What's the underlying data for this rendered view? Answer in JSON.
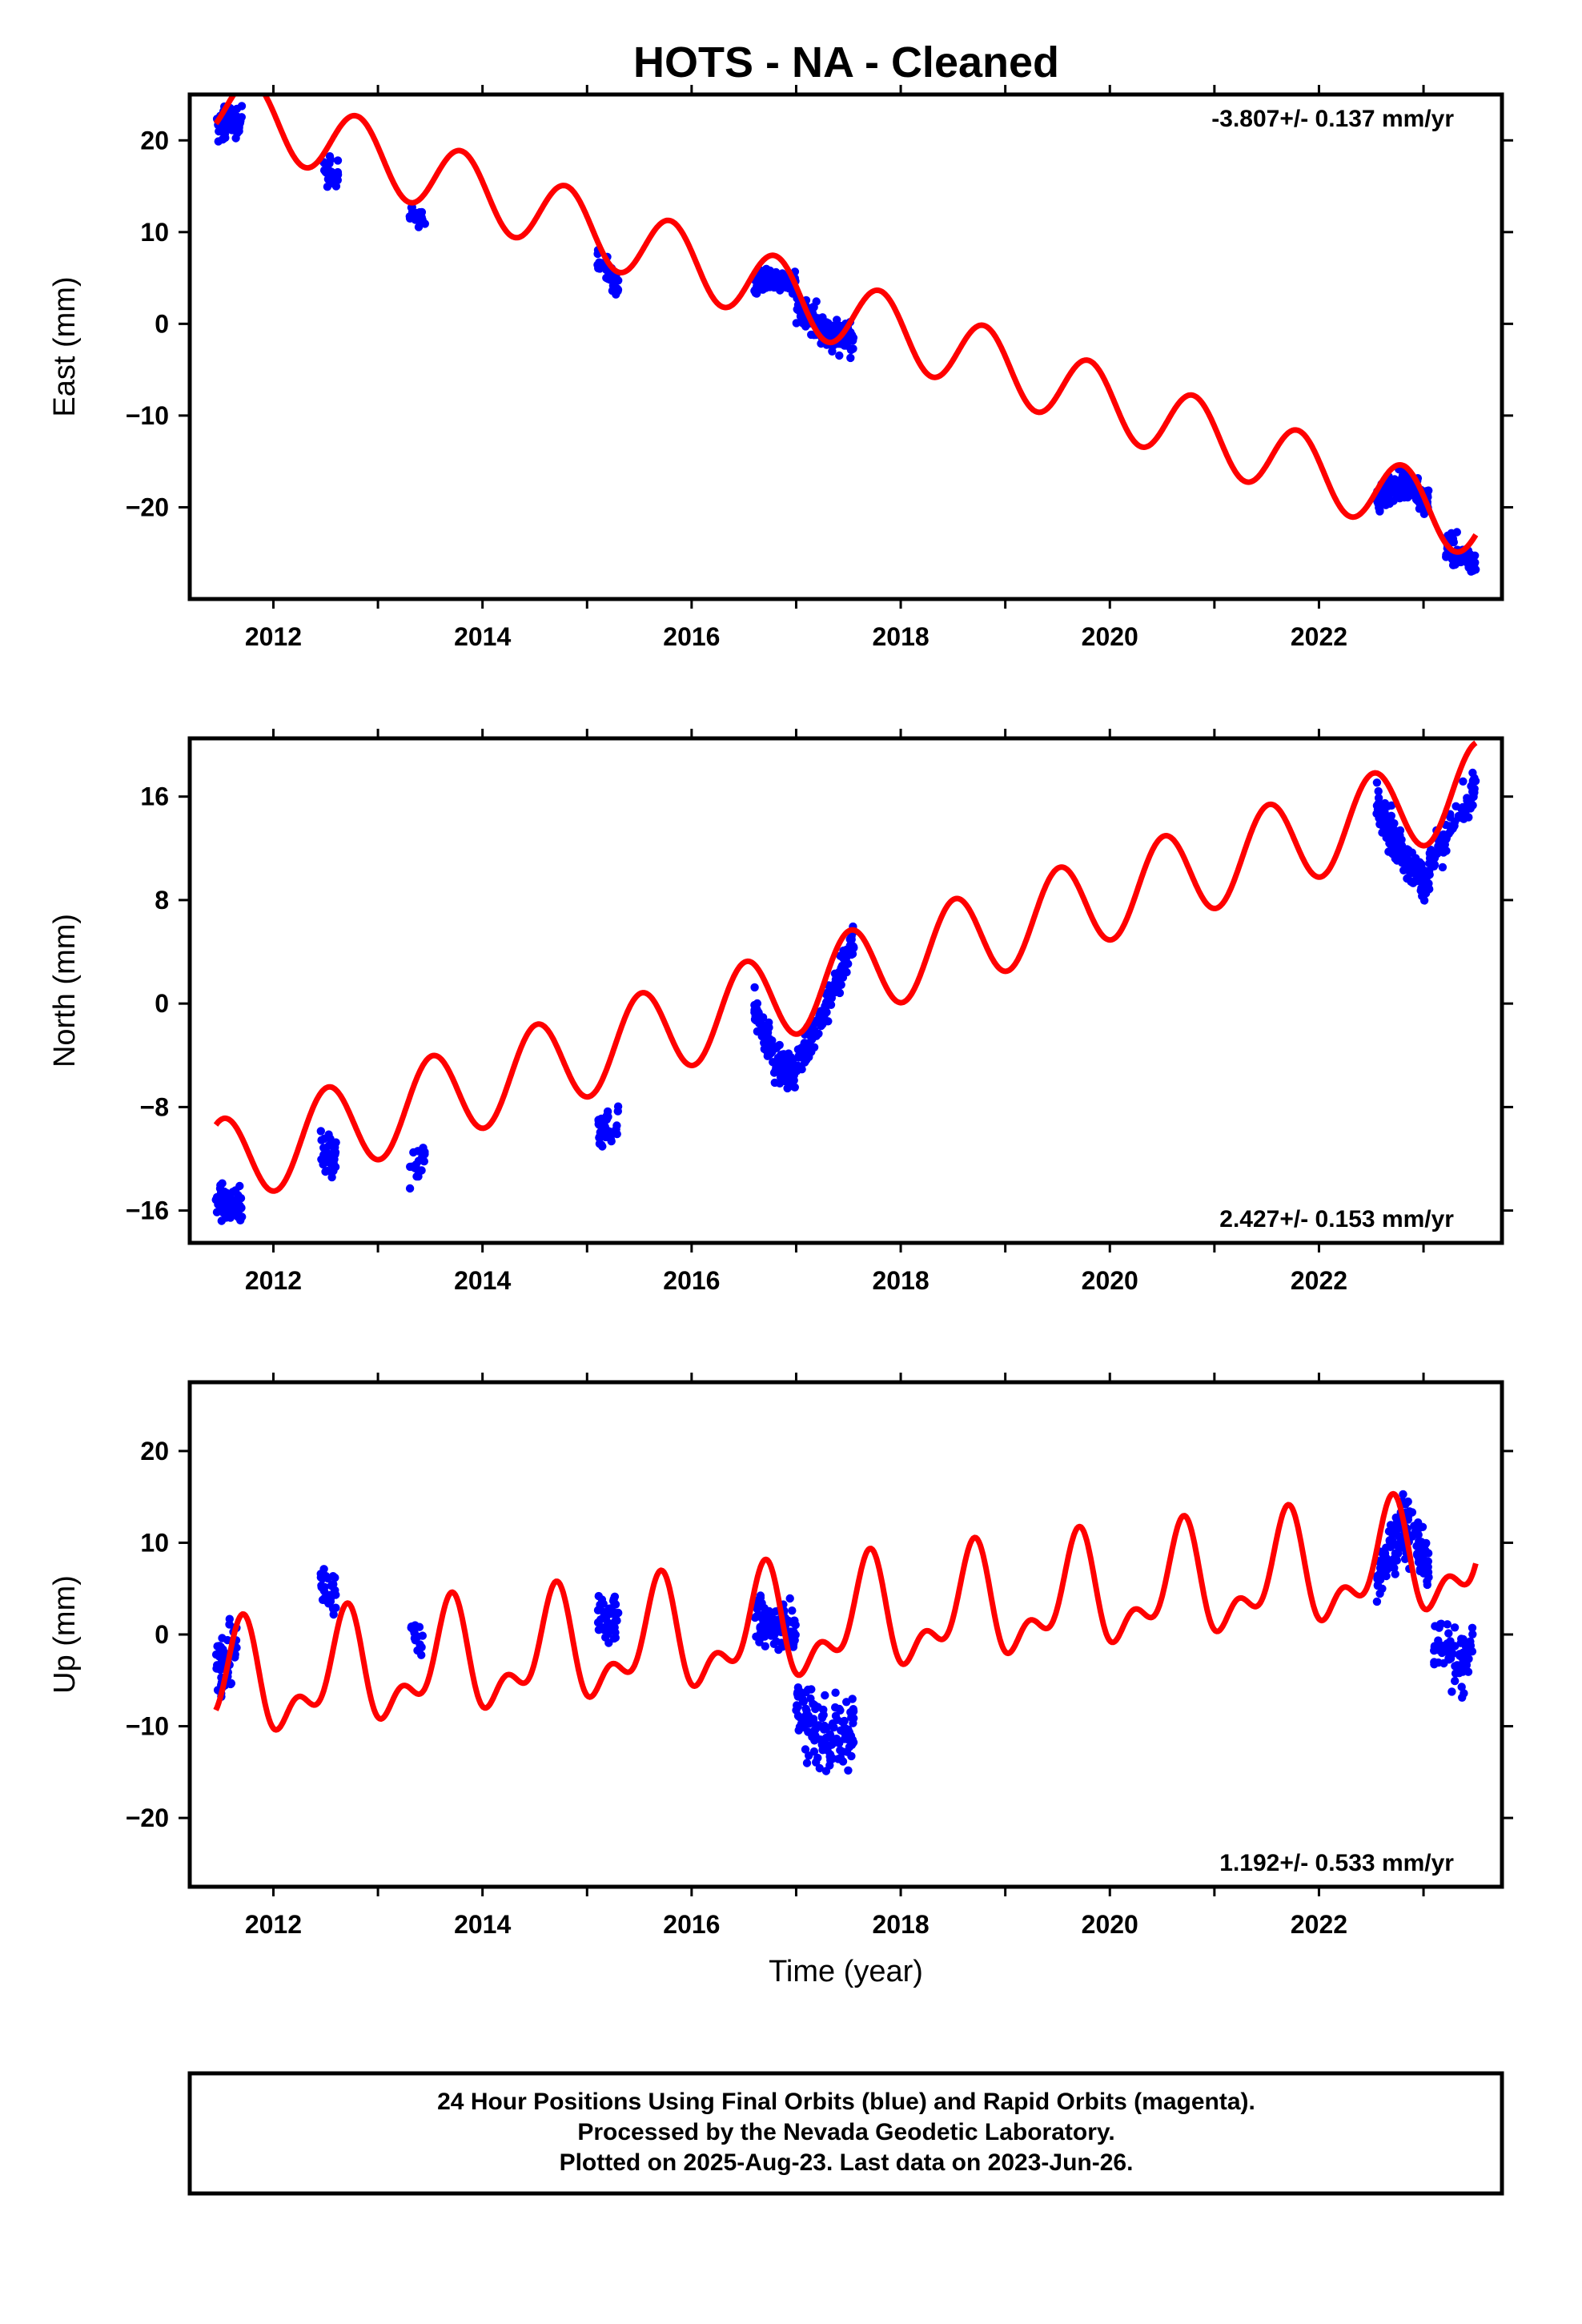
{
  "title": "HOTS  - NA - Cleaned",
  "colors": {
    "data": "#0000ff",
    "model": "#ff0000",
    "frame": "#000000"
  },
  "footer": {
    "line1": "24 Hour Positions Using Final Orbits (blue) and Rapid Orbits (magenta).",
    "line2": "Processed by the Nevada Geodetic Laboratory.",
    "line3": "Plotted on 2025-Aug-23. Last data on 2023-Jun-26."
  },
  "chart_data": [
    {
      "type": "scatter",
      "ylabel": "East (mm)",
      "xlabel": "",
      "xlim": [
        2011.2,
        2023.75
      ],
      "ylim": [
        -30,
        25
      ],
      "xticks": [
        2012,
        2014,
        2016,
        2018,
        2020,
        2022
      ],
      "yticks": [
        20,
        10,
        0,
        -10,
        -20
      ],
      "ytick_labels": [
        "20",
        "10",
        "0",
        "−10",
        "−20"
      ],
      "rate_label": "-3.807+/- 0.137 mm/yr",
      "rate_position": "top-right",
      "series": [
        {
          "kind": "points",
          "clusters": [
            {
              "x0": 2011.45,
              "x1": 2011.7,
              "values": [
                [
                  2011.45,
                  21.0
                ],
                [
                  2011.55,
                  21.8
                ],
                [
                  2011.7,
                  22.5
                ]
              ],
              "spread": 1.6,
              "n": 60
            },
            {
              "x0": 2012.48,
              "x1": 2012.62,
              "values": [
                [
                  2012.48,
                  17.0
                ],
                [
                  2012.62,
                  16.0
                ]
              ],
              "spread": 1.4,
              "n": 35
            },
            {
              "x0": 2013.3,
              "x1": 2013.45,
              "values": [
                [
                  2013.3,
                  12.0
                ],
                [
                  2013.45,
                  11.5
                ]
              ],
              "spread": 1.0,
              "n": 20
            },
            {
              "x0": 2015.1,
              "x1": 2015.3,
              "values": [
                [
                  2015.1,
                  7.0
                ],
                [
                  2015.3,
                  4.0
                ]
              ],
              "spread": 1.3,
              "n": 40
            },
            {
              "x0": 2016.6,
              "x1": 2017.0,
              "values": [
                [
                  2016.6,
                  4.5
                ],
                [
                  2016.8,
                  5.0
                ],
                [
                  2017.0,
                  4.5
                ]
              ],
              "spread": 1.0,
              "n": 110
            },
            {
              "x0": 2017.0,
              "x1": 2017.55,
              "values": [
                [
                  2017.0,
                  2.0
                ],
                [
                  2017.3,
                  -1.0
                ],
                [
                  2017.55,
                  -1.5
                ]
              ],
              "spread": 1.6,
              "n": 140
            },
            {
              "x0": 2022.55,
              "x1": 2023.05,
              "values": [
                [
                  2022.55,
                  -19.5
                ],
                [
                  2022.8,
                  -17.5
                ],
                [
                  2023.05,
                  -19.5
                ]
              ],
              "spread": 1.4,
              "n": 160
            },
            {
              "x0": 2023.2,
              "x1": 2023.5,
              "values": [
                [
                  2023.2,
                  -24.0
                ],
                [
                  2023.5,
                  -26.0
                ]
              ],
              "spread": 1.5,
              "n": 60
            }
          ]
        },
        {
          "kind": "model",
          "intercept_at_2011": 25.75,
          "rate": -3.807,
          "amplitude": 3.75,
          "peak_phase": 0.8
        }
      ]
    },
    {
      "type": "scatter",
      "ylabel": "North (mm)",
      "xlabel": "",
      "xlim": [
        2011.2,
        2023.75
      ],
      "ylim": [
        -18.5,
        20.5
      ],
      "xticks": [
        2012,
        2014,
        2016,
        2018,
        2020,
        2022
      ],
      "yticks": [
        16,
        8,
        0,
        -8,
        -16
      ],
      "ytick_labels": [
        "16",
        "8",
        "0",
        "−8",
        "−16"
      ],
      "rate_label": "2.427+/- 0.153 mm/yr",
      "rate_position": "bottom-right",
      "series": [
        {
          "kind": "points",
          "clusters": [
            {
              "x0": 2011.45,
              "x1": 2011.7,
              "values": [
                [
                  2011.45,
                  -15.5
                ],
                [
                  2011.7,
                  -15.5
                ]
              ],
              "spread": 1.3,
              "n": 60
            },
            {
              "x0": 2012.45,
              "x1": 2012.6,
              "values": [
                [
                  2012.45,
                  -11.5
                ],
                [
                  2012.6,
                  -12.0
                ]
              ],
              "spread": 1.2,
              "n": 35
            },
            {
              "x0": 2013.3,
              "x1": 2013.45,
              "values": [
                [
                  2013.3,
                  -13.5
                ],
                [
                  2013.45,
                  -11.5
                ]
              ],
              "spread": 1.2,
              "n": 20
            },
            {
              "x0": 2015.1,
              "x1": 2015.3,
              "values": [
                [
                  2015.1,
                  -10.0
                ],
                [
                  2015.3,
                  -9.0
                ]
              ],
              "spread": 1.2,
              "n": 40
            },
            {
              "x0": 2016.6,
              "x1": 2017.0,
              "values": [
                [
                  2016.6,
                  0.0
                ],
                [
                  2016.8,
                  -4.5
                ],
                [
                  2017.0,
                  -5.5
                ]
              ],
              "spread": 1.3,
              "n": 110
            },
            {
              "x0": 2017.0,
              "x1": 2017.55,
              "values": [
                [
                  2017.0,
                  -5.0
                ],
                [
                  2017.3,
                  0.0
                ],
                [
                  2017.55,
                  5.0
                ]
              ],
              "spread": 1.3,
              "n": 140
            },
            {
              "x0": 2022.55,
              "x1": 2023.05,
              "values": [
                [
                  2022.55,
                  15.5
                ],
                [
                  2022.8,
                  11.5
                ],
                [
                  2023.05,
                  9.0
                ]
              ],
              "spread": 1.3,
              "n": 160
            },
            {
              "x0": 2023.05,
              "x1": 2023.5,
              "values": [
                [
                  2023.05,
                  10.5
                ],
                [
                  2023.3,
                  14.0
                ],
                [
                  2023.5,
                  17.0
                ]
              ],
              "spread": 1.3,
              "n": 80
            }
          ]
        },
        {
          "kind": "model",
          "intercept_at_2011": -13.55,
          "rate": 2.427,
          "amplitude": 3.4,
          "peak_phase": 0.52
        }
      ]
    },
    {
      "type": "scatter",
      "ylabel": "Up (mm)",
      "xlabel": "Time (year)",
      "xlim": [
        2011.2,
        2023.75
      ],
      "ylim": [
        -27.5,
        27.5
      ],
      "xticks": [
        2012,
        2014,
        2016,
        2018,
        2020,
        2022
      ],
      "yticks": [
        20,
        10,
        0,
        -10,
        -20
      ],
      "ytick_labels": [
        "20",
        "10",
        "0",
        "−10",
        "−20"
      ],
      "rate_label": "1.192+/- 0.533 mm/yr",
      "rate_position": "bottom-right",
      "series": [
        {
          "kind": "points",
          "clusters": [
            {
              "x0": 2011.45,
              "x1": 2011.65,
              "values": [
                [
                  2011.45,
                  -3.0
                ],
                [
                  2011.65,
                  -2.0
                ]
              ],
              "spread": 3.0,
              "n": 60
            },
            {
              "x0": 2012.45,
              "x1": 2012.6,
              "values": [
                [
                  2012.45,
                  5.5
                ],
                [
                  2012.6,
                  4.5
                ]
              ],
              "spread": 2.0,
              "n": 35
            },
            {
              "x0": 2013.3,
              "x1": 2013.45,
              "values": [
                [
                  2013.3,
                  0.0
                ],
                [
                  2013.45,
                  0.5
                ]
              ],
              "spread": 2.0,
              "n": 15
            },
            {
              "x0": 2015.1,
              "x1": 2015.3,
              "values": [
                [
                  2015.1,
                  1.5
                ],
                [
                  2015.3,
                  2.0
                ]
              ],
              "spread": 2.5,
              "n": 40
            },
            {
              "x0": 2016.6,
              "x1": 2017.0,
              "values": [
                [
                  2016.6,
                  2.0
                ],
                [
                  2016.8,
                  0.5
                ],
                [
                  2017.0,
                  0.5
                ]
              ],
              "spread": 2.5,
              "n": 110
            },
            {
              "x0": 2017.0,
              "x1": 2017.55,
              "values": [
                [
                  2017.0,
                  -8.0
                ],
                [
                  2017.3,
                  -12.0
                ],
                [
                  2017.55,
                  -10.0
                ]
              ],
              "spread": 3.2,
              "n": 140
            },
            {
              "x0": 2022.55,
              "x1": 2023.05,
              "values": [
                [
                  2022.55,
                  6.0
                ],
                [
                  2022.8,
                  12.0
                ],
                [
                  2023.05,
                  8.0
                ]
              ],
              "spread": 3.0,
              "n": 150
            },
            {
              "x0": 2023.1,
              "x1": 2023.5,
              "values": [
                [
                  2023.1,
                  0.0
                ],
                [
                  2023.3,
                  -3.0
                ],
                [
                  2023.5,
                  -2.0
                ]
              ],
              "spread": 3.0,
              "n": 70
            }
          ]
        },
        {
          "kind": "model",
          "intercept_at_2011": -6.5,
          "rate": 1.192,
          "amplitude": 5.0,
          "peak_phase": 0.68,
          "semi_amplitude": 3.0,
          "semi_phase": 0.22
        }
      ]
    }
  ]
}
